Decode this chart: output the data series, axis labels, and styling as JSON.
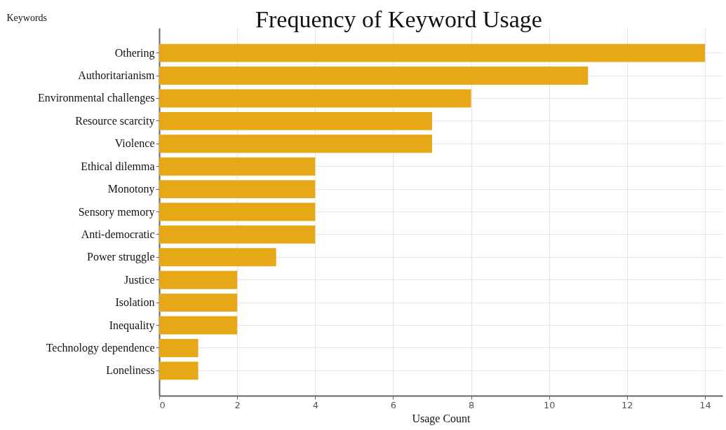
{
  "chart_data": {
    "type": "bar",
    "orientation": "horizontal",
    "title": "Frequency of Keyword Usage",
    "xlabel": "Usage Count",
    "ylabel": "Keywords",
    "categories": [
      "Othering",
      "Authoritarianism",
      "Environmental challenges",
      "Resource scarcity",
      "Violence",
      "Ethical dilemma",
      "Monotony",
      "Sensory memory",
      "Anti-democratic",
      "Power struggle",
      "Justice",
      "Isolation",
      "Inequality",
      "Technology dependence",
      "Loneliness"
    ],
    "values": [
      14,
      11,
      8,
      7,
      7,
      4,
      4,
      4,
      4,
      3,
      2,
      2,
      2,
      1,
      1
    ],
    "color": "#e6a817",
    "xlim": [
      0,
      14.45
    ],
    "xticks": [
      0,
      2,
      4,
      6,
      8,
      10,
      12,
      14
    ],
    "grid": true
  }
}
